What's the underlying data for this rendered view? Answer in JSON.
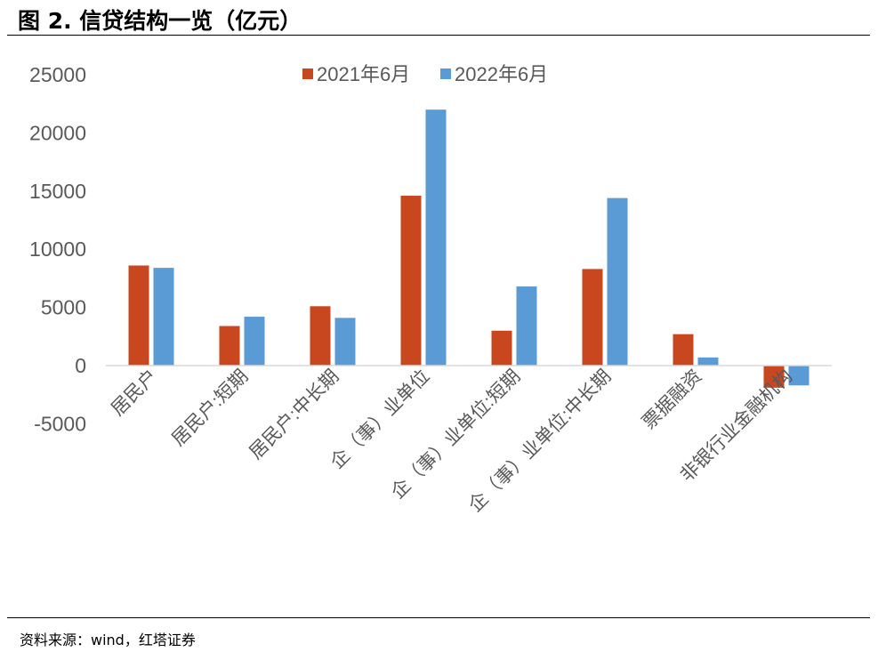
{
  "title": "图 2. 信贷结构一览（亿元）",
  "source": "资料来源：wind，红塔证券",
  "chart_data": {
    "type": "bar",
    "title": "图 2. 信贷结构一览（亿元）",
    "xlabel": "",
    "ylabel": "",
    "ylim": [
      -5000,
      25000
    ],
    "yticks": [
      25000,
      20000,
      15000,
      10000,
      5000,
      0,
      -5000
    ],
    "grid": false,
    "legend_position": "top-center",
    "categories": [
      "居民户",
      "居民户:短期",
      "居民户:中长期",
      "企（事）业单位",
      "企（事）业单位:短期",
      "企（事）业单位:中长期",
      "票据融资",
      "非银行业金融机构"
    ],
    "series": [
      {
        "name": "2021年6月",
        "color": "#C8471F",
        "values": [
          8600,
          3400,
          5100,
          14600,
          3000,
          8300,
          2700,
          -1900
        ]
      },
      {
        "name": "2022年6月",
        "color": "#5B9BD5",
        "values": [
          8400,
          4200,
          4100,
          22000,
          6800,
          14400,
          700,
          -1700
        ]
      }
    ]
  }
}
